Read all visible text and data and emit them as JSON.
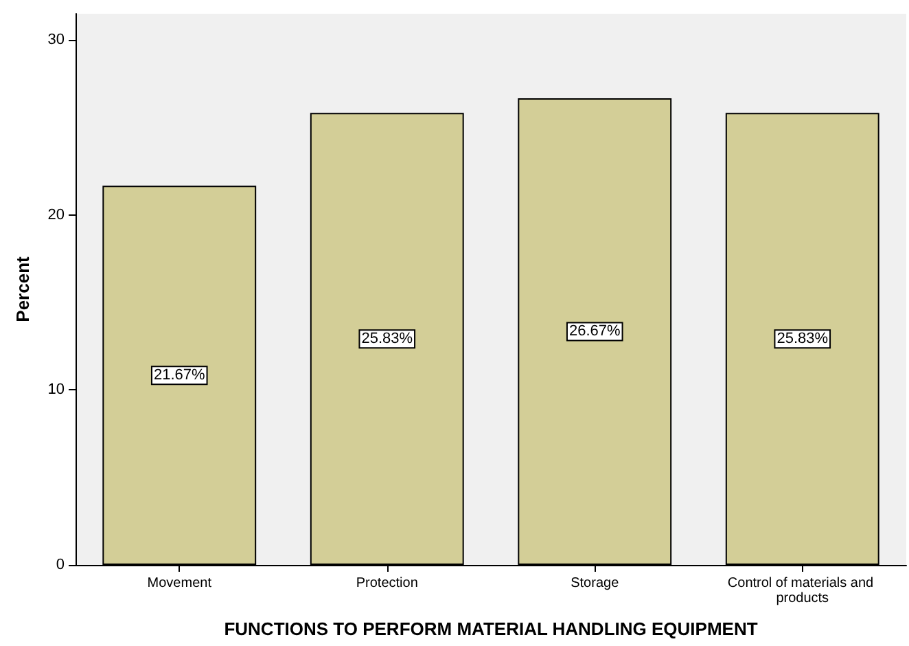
{
  "chart_data": {
    "type": "bar",
    "xlabel": "FUNCTIONS TO PERFORM MATERIAL HANDLING EQUIPMENT",
    "ylabel": "Percent",
    "categories": [
      "Movement",
      "Protection",
      "Storage",
      "Control of materials and products"
    ],
    "values": [
      21.67,
      25.83,
      26.67,
      25.83
    ],
    "value_labels": [
      "21.67%",
      "25.83%",
      "26.67%",
      "25.83%"
    ],
    "color": "#d3ce97",
    "ylim": [
      0,
      31.5
    ],
    "yticks": [
      0,
      10,
      20,
      30
    ],
    "grid": false
  }
}
